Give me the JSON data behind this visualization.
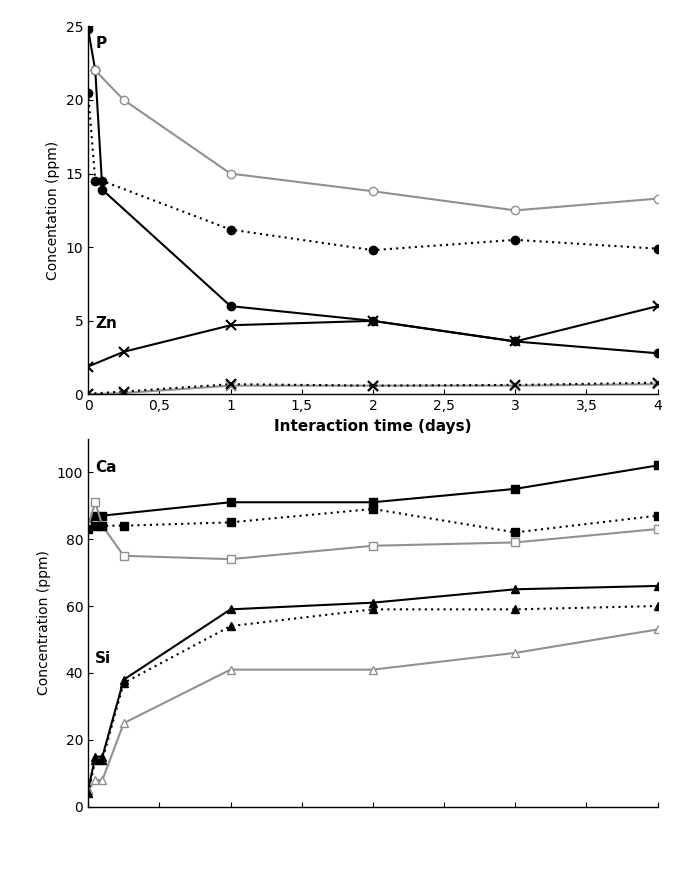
{
  "top_plot": {
    "P_black_solid_x": [
      0,
      0.05,
      0.1,
      1,
      2,
      3,
      4
    ],
    "P_black_solid_y": [
      24.8,
      22.0,
      13.9,
      6.0,
      5.0,
      3.6,
      2.8
    ],
    "P_gray_open_x": [
      0.05,
      0.25,
      1,
      2,
      3,
      4
    ],
    "P_gray_open_y": [
      22.0,
      20.0,
      15.0,
      13.8,
      12.5,
      13.3
    ],
    "P_black_dotted_x": [
      0,
      0.05,
      0.1,
      1,
      2,
      3,
      4
    ],
    "P_black_dotted_y": [
      20.5,
      14.5,
      14.5,
      11.2,
      9.8,
      10.5,
      9.9
    ],
    "Zn_black_solid_x": [
      0,
      0.25,
      1,
      2,
      3,
      4
    ],
    "Zn_black_solid_y": [
      1.9,
      2.9,
      4.7,
      5.0,
      3.6,
      6.0
    ],
    "Zn_gray_cross_x": [
      0,
      0.25,
      1,
      2,
      3,
      4
    ],
    "Zn_gray_cross_y": [
      0.0,
      0.1,
      0.6,
      0.6,
      0.6,
      0.7
    ],
    "Zn_black_dotted_x": [
      0,
      0.25,
      1,
      2,
      3,
      4
    ],
    "Zn_black_dotted_y": [
      0.05,
      0.2,
      0.7,
      0.6,
      0.65,
      0.8
    ],
    "ylabel": "Concentation (ppm)",
    "xlabel": "Interaction time (days)",
    "ylim": [
      0,
      25
    ],
    "xlim": [
      0,
      4
    ],
    "yticks": [
      0,
      5,
      10,
      15,
      20,
      25
    ],
    "xticks": [
      0,
      0.5,
      1.0,
      1.5,
      2.0,
      2.5,
      3.0,
      3.5,
      4.0
    ],
    "xticklabels": [
      "0",
      "0,5",
      "1",
      "1,5",
      "2",
      "2,5",
      "3",
      "3,5",
      "4"
    ],
    "label_P": "P",
    "label_Zn": "Zn"
  },
  "bottom_plot": {
    "Ca_black_solid_x": [
      0,
      0.05,
      0.1,
      1,
      2,
      3,
      4
    ],
    "Ca_black_solid_y": [
      84,
      87,
      87,
      91,
      91,
      95,
      102
    ],
    "Ca_gray_open_x": [
      0,
      0.05,
      0.1,
      0.25,
      1,
      2,
      3,
      4
    ],
    "Ca_gray_open_y": [
      84,
      91,
      84,
      75,
      74,
      78,
      79,
      83
    ],
    "Ca_black_dotted_x": [
      0,
      0.05,
      0.1,
      0.25,
      1,
      2,
      3,
      4
    ],
    "Ca_black_dotted_y": [
      83,
      84,
      84,
      84,
      85,
      89,
      82,
      87
    ],
    "Si_black_solid_x": [
      0,
      0.05,
      0.1,
      0.25,
      1,
      2,
      3,
      4
    ],
    "Si_black_solid_y": [
      5,
      15,
      15,
      38,
      59,
      61,
      65,
      66
    ],
    "Si_gray_open_x": [
      0,
      0.05,
      0.1,
      0.25,
      1,
      2,
      3,
      4
    ],
    "Si_gray_open_y": [
      5,
      8,
      8,
      25,
      41,
      41,
      46,
      53
    ],
    "Si_black_dotted_x": [
      0,
      0.05,
      0.1,
      0.25,
      1,
      2,
      3,
      4
    ],
    "Si_black_dotted_y": [
      4,
      14,
      14,
      37,
      54,
      59,
      59,
      60
    ],
    "ylabel": "Concentration (ppm)",
    "ylim": [
      0,
      110
    ],
    "xlim": [
      0,
      4
    ],
    "yticks": [
      0,
      20,
      40,
      60,
      80,
      100
    ],
    "xticks": [
      0,
      0.5,
      1.0,
      1.5,
      2.0,
      2.5,
      3.0,
      3.5,
      4.0
    ],
    "label_Ca": "Ca",
    "label_Si": "Si"
  },
  "colors": {
    "black": "#000000",
    "gray": "#909090"
  }
}
